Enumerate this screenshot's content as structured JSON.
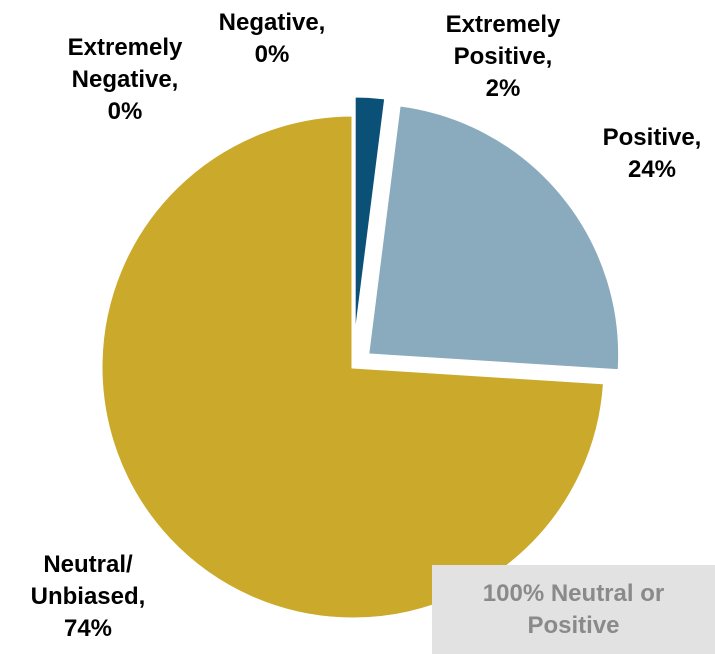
{
  "chart_data": {
    "type": "pie",
    "slices": [
      {
        "label": "Extremely Negative",
        "value": 0,
        "display": [
          "Extremely",
          "Negative,",
          "0%"
        ],
        "color": "#1d3557"
      },
      {
        "label": "Negative",
        "value": 0,
        "display": [
          "Negative,",
          "0%"
        ],
        "color": "#2e4d6b"
      },
      {
        "label": "Extremely Positive",
        "value": 2,
        "display": [
          "Extremely",
          "Positive,",
          "2%"
        ],
        "color": "#0b5177"
      },
      {
        "label": "Positive",
        "value": 24,
        "display": [
          "Positive,",
          "24%"
        ],
        "color": "#8aabbd"
      },
      {
        "label": "Neutral/ Unbiased",
        "value": 74,
        "display": [
          "Neutral/",
          "Unbiased,",
          "74%"
        ],
        "color": "#cbaa2b"
      }
    ],
    "callout": "100% Neutral or\nPositive"
  }
}
